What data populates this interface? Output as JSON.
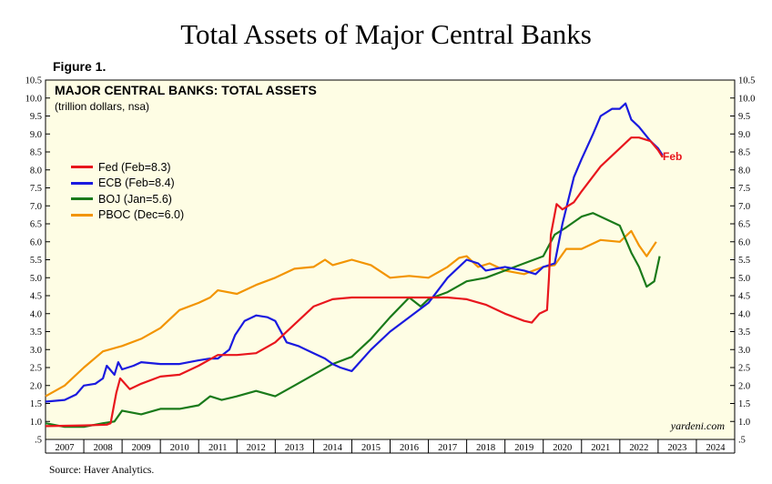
{
  "page_title": "Total Assets of Major Central Banks",
  "figure_label": "Figure 1.",
  "source": "Source: Haver Analytics.",
  "watermark": "yardeni.com",
  "colors": {
    "fed": "#e8161d",
    "ecb": "#1a1adf",
    "boj": "#1a7a1a",
    "pboc": "#f29400",
    "plot_bg": "#fefde4"
  },
  "chart_data": {
    "type": "line",
    "title": "MAJOR CENTRAL BANKS: TOTAL ASSETS",
    "subtitle": "(trillion dollars, nsa)",
    "ylim": [
      0.5,
      10.5
    ],
    "xlim": [
      2007.0,
      2025.0
    ],
    "y_ticks": [
      ".5",
      "1.0",
      "1.5",
      "2.0",
      "2.5",
      "3.0",
      "3.5",
      "4.0",
      "4.5",
      "5.0",
      "5.5",
      "6.0",
      "6.5",
      "7.0",
      "7.5",
      "8.0",
      "8.5",
      "9.0",
      "9.5",
      "10.0",
      "10.5"
    ],
    "x_tick_labels": [
      "2007",
      "2008",
      "2009",
      "2010",
      "2011",
      "2012",
      "2013",
      "2014",
      "2015",
      "2016",
      "2017",
      "2018",
      "2019",
      "2020",
      "2021",
      "2022",
      "2023",
      "2024"
    ],
    "grid": false,
    "legend_placement": "top-left",
    "end_label": "Feb",
    "series": [
      {
        "key": "fed",
        "name": "Fed (Feb=8.3)",
        "x": [
          2007.0,
          2007.5,
          2008.0,
          2008.6,
          2008.7,
          2008.85,
          2008.95,
          2009.2,
          2009.5,
          2010.0,
          2010.5,
          2011.0,
          2011.5,
          2012.0,
          2012.5,
          2013.0,
          2013.5,
          2014.0,
          2014.5,
          2015.0,
          2015.5,
          2016.0,
          2016.5,
          2017.0,
          2017.5,
          2018.0,
          2018.5,
          2019.0,
          2019.5,
          2019.7,
          2019.9,
          2020.1,
          2020.15,
          2020.2,
          2020.35,
          2020.5,
          2020.8,
          2021.0,
          2021.5,
          2022.0,
          2022.3,
          2022.5,
          2022.8,
          2023.0,
          2023.12
        ],
        "values": [
          0.87,
          0.88,
          0.89,
          0.91,
          0.95,
          1.8,
          2.2,
          1.9,
          2.05,
          2.25,
          2.3,
          2.55,
          2.85,
          2.85,
          2.9,
          3.2,
          3.7,
          4.2,
          4.4,
          4.45,
          4.45,
          4.45,
          4.45,
          4.45,
          4.45,
          4.4,
          4.25,
          4.0,
          3.8,
          3.75,
          4.0,
          4.1,
          5.0,
          6.2,
          7.05,
          6.9,
          7.1,
          7.4,
          8.1,
          8.6,
          8.9,
          8.9,
          8.8,
          8.55,
          8.35
        ]
      },
      {
        "key": "ecb",
        "name": "ECB (Feb=8.4)",
        "x": [
          2007.0,
          2007.5,
          2007.8,
          2008.0,
          2008.3,
          2008.5,
          2008.6,
          2008.8,
          2008.9,
          2009.0,
          2009.3,
          2009.5,
          2010.0,
          2010.5,
          2011.0,
          2011.3,
          2011.5,
          2011.8,
          2011.95,
          2012.2,
          2012.5,
          2012.8,
          2013.0,
          2013.3,
          2013.6,
          2014.0,
          2014.3,
          2014.5,
          2014.7,
          2015.0,
          2015.5,
          2016.0,
          2016.5,
          2017.0,
          2017.5,
          2018.0,
          2018.3,
          2018.5,
          2019.0,
          2019.5,
          2019.8,
          2020.0,
          2020.3,
          2020.5,
          2020.8,
          2021.0,
          2021.3,
          2021.5,
          2021.8,
          2022.0,
          2022.15,
          2022.3,
          2022.5,
          2022.8,
          2023.0,
          2023.12
        ],
        "values": [
          1.55,
          1.6,
          1.75,
          2.0,
          2.05,
          2.2,
          2.55,
          2.3,
          2.65,
          2.45,
          2.55,
          2.65,
          2.6,
          2.6,
          2.7,
          2.75,
          2.75,
          3.0,
          3.4,
          3.8,
          3.95,
          3.9,
          3.8,
          3.2,
          3.1,
          2.9,
          2.75,
          2.6,
          2.5,
          2.4,
          3.0,
          3.5,
          3.9,
          4.3,
          5.0,
          5.5,
          5.4,
          5.2,
          5.3,
          5.2,
          5.1,
          5.3,
          5.4,
          6.5,
          7.8,
          8.3,
          9.0,
          9.5,
          9.7,
          9.7,
          9.85,
          9.4,
          9.2,
          8.8,
          8.6,
          8.4
        ]
      },
      {
        "key": "boj",
        "name": "BOJ (Jan=5.6)",
        "x": [
          2007.0,
          2007.5,
          2008.0,
          2008.5,
          2008.8,
          2009.0,
          2009.5,
          2010.0,
          2010.5,
          2011.0,
          2011.3,
          2011.6,
          2012.0,
          2012.5,
          2013.0,
          2013.5,
          2014.0,
          2014.5,
          2015.0,
          2015.5,
          2016.0,
          2016.5,
          2016.8,
          2017.0,
          2017.5,
          2018.0,
          2018.5,
          2019.0,
          2019.5,
          2020.0,
          2020.3,
          2020.6,
          2021.0,
          2021.3,
          2021.6,
          2022.0,
          2022.3,
          2022.5,
          2022.7,
          2022.9,
          2023.04
        ],
        "values": [
          0.95,
          0.85,
          0.85,
          0.95,
          1.0,
          1.3,
          1.2,
          1.35,
          1.35,
          1.45,
          1.7,
          1.6,
          1.7,
          1.85,
          1.7,
          2.0,
          2.3,
          2.6,
          2.8,
          3.3,
          3.9,
          4.45,
          4.2,
          4.4,
          4.6,
          4.9,
          5.0,
          5.2,
          5.4,
          5.6,
          6.2,
          6.4,
          6.7,
          6.8,
          6.65,
          6.45,
          5.7,
          5.3,
          4.75,
          4.9,
          5.6
        ]
      },
      {
        "key": "pboc",
        "name": "PBOC (Dec=6.0)",
        "x": [
          2007.0,
          2007.5,
          2008.0,
          2008.5,
          2009.0,
          2009.5,
          2010.0,
          2010.5,
          2011.0,
          2011.3,
          2011.5,
          2012.0,
          2012.5,
          2013.0,
          2013.5,
          2014.0,
          2014.3,
          2014.5,
          2015.0,
          2015.5,
          2016.0,
          2016.5,
          2017.0,
          2017.5,
          2017.8,
          2018.0,
          2018.3,
          2018.6,
          2019.0,
          2019.5,
          2020.0,
          2020.3,
          2020.6,
          2021.0,
          2021.5,
          2022.0,
          2022.3,
          2022.5,
          2022.7,
          2022.95
        ],
        "values": [
          1.7,
          2.0,
          2.5,
          2.95,
          3.1,
          3.3,
          3.6,
          4.1,
          4.3,
          4.45,
          4.65,
          4.55,
          4.8,
          5.0,
          5.25,
          5.3,
          5.5,
          5.35,
          5.5,
          5.35,
          5.0,
          5.05,
          5.0,
          5.3,
          5.55,
          5.6,
          5.3,
          5.4,
          5.2,
          5.1,
          5.3,
          5.35,
          5.8,
          5.8,
          6.05,
          6.0,
          6.3,
          5.9,
          5.6,
          6.0
        ]
      }
    ]
  }
}
